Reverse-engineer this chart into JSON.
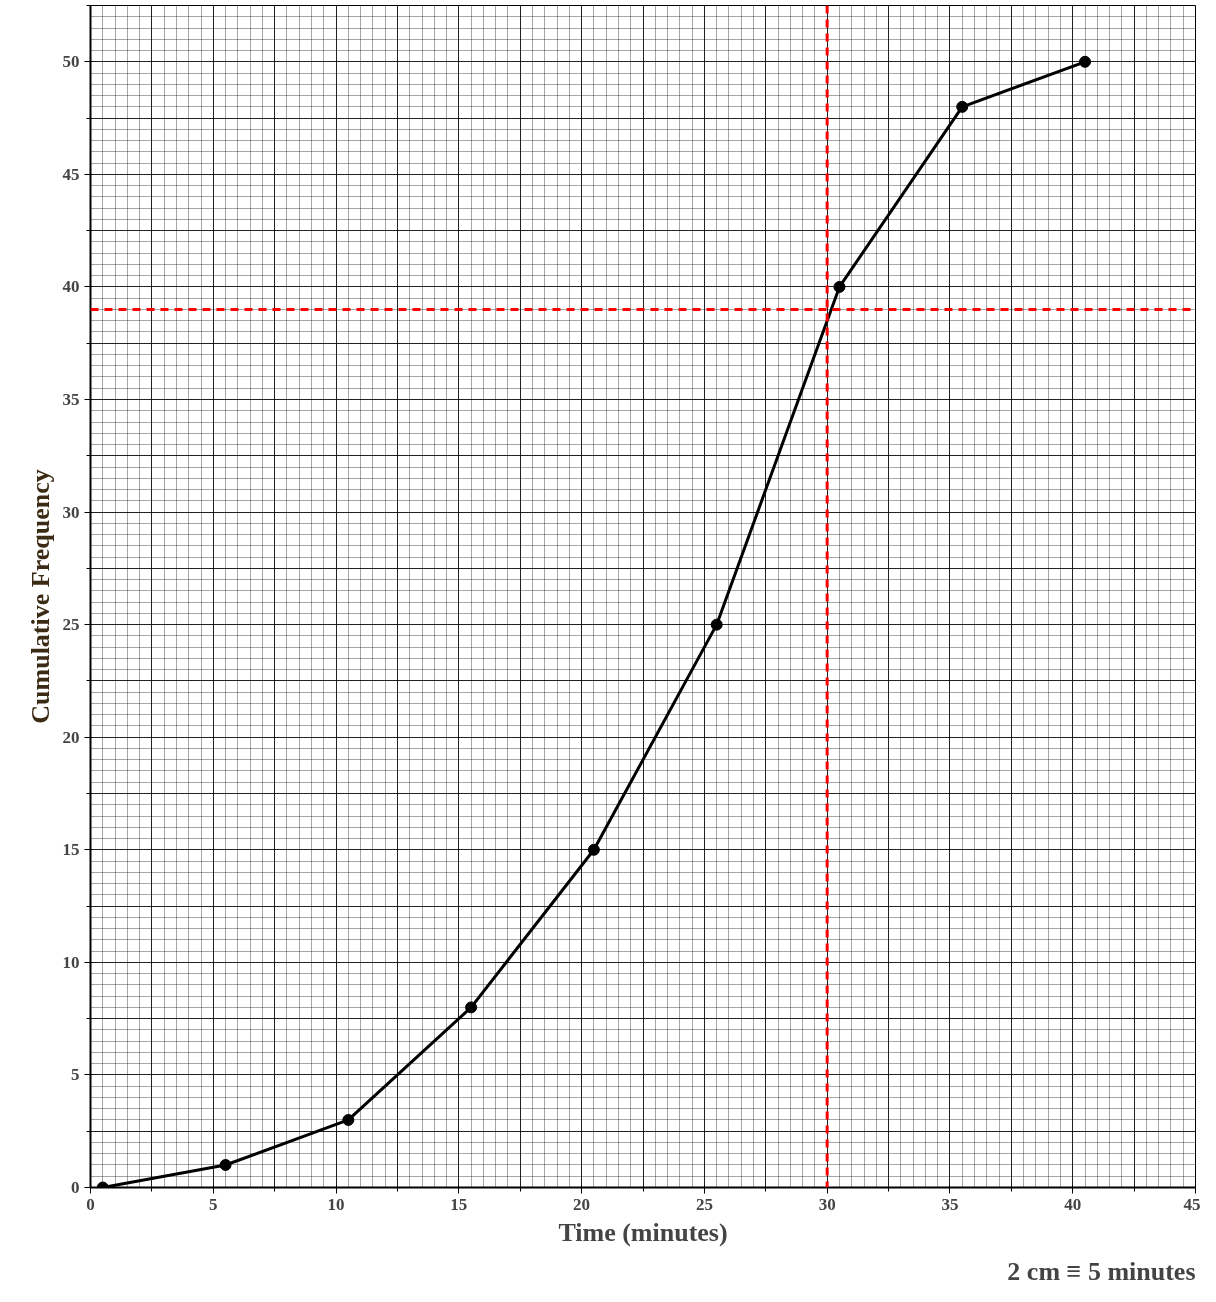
{
  "chart_data": {
    "type": "line",
    "xlabel": "Time (minutes)",
    "ylabel": "Cumulative Frequency",
    "x": [
      0.5,
      5.5,
      10.5,
      15.5,
      20.5,
      25.5,
      30.5,
      35.5,
      40.5
    ],
    "series": [
      {
        "color": "#000000",
        "values": [
          0,
          1,
          3,
          8,
          15,
          25,
          40,
          48,
          50
        ]
      }
    ],
    "xlim": [
      0,
      45
    ],
    "ylim": [
      0,
      52.5
    ],
    "xticks": [
      0,
      5,
      10,
      15,
      20,
      25,
      30,
      35,
      40,
      45
    ],
    "yticks": [
      0,
      5,
      10,
      15,
      20,
      25,
      30,
      35,
      40,
      45,
      50
    ],
    "grid": true,
    "marker": "circle",
    "line_style": "solid",
    "ref_lines": [
      {
        "axis": "x",
        "value": 30,
        "color": "#ff0000",
        "line_style": "dashed"
      },
      {
        "axis": "y",
        "value": 39,
        "color": "#ff0000",
        "line_style": "dashed"
      }
    ],
    "annotations": [
      "2 cm ≡ 5 minutes"
    ]
  }
}
